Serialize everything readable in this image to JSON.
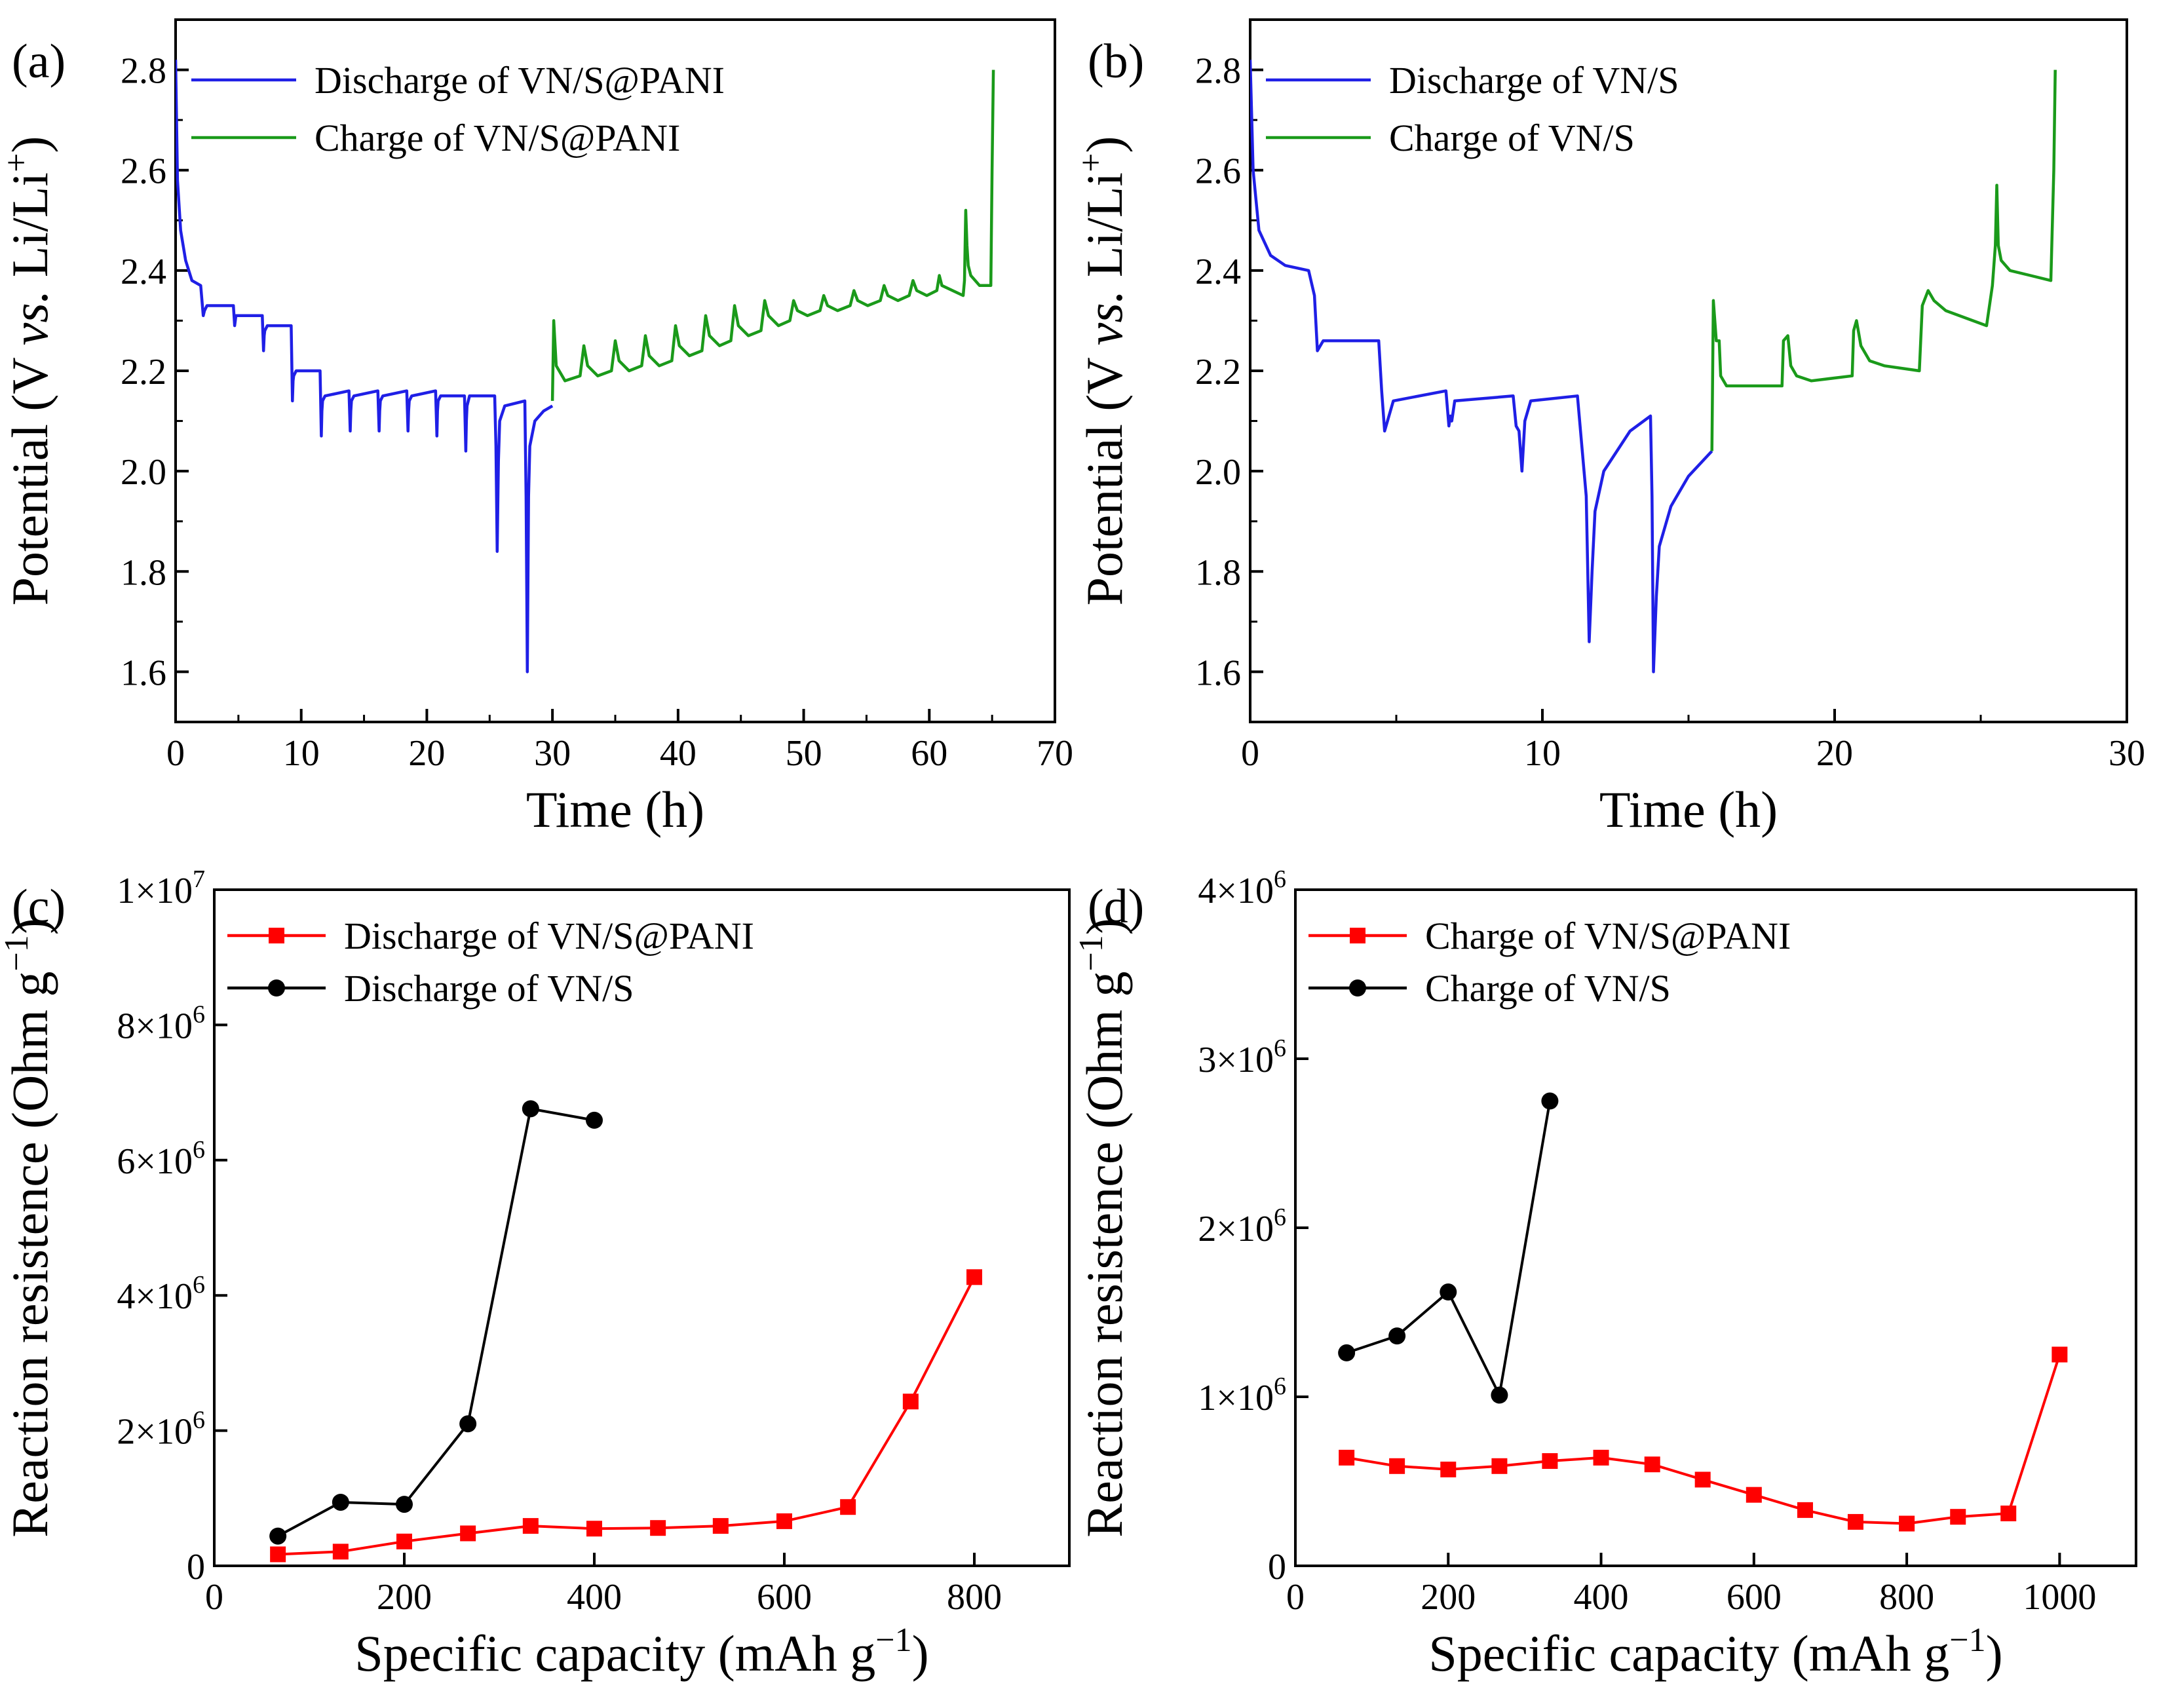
{
  "chart_data": [
    {
      "panel": "a",
      "panel_label": "(a)",
      "type": "line",
      "xlabel": "Time (h)",
      "ylabel": "Potential (V vs. Li/Li+)",
      "ylabel_parts": {
        "pre": "Potential (V ",
        "italic": "vs.",
        "post": " Li/Li",
        "sup": "+",
        "end": ")"
      },
      "xlim": [
        0,
        70
      ],
      "ylim": [
        1.5,
        2.9
      ],
      "x_ticks": [
        0,
        10,
        20,
        30,
        40,
        50,
        60,
        70
      ],
      "x_tick_labels": [
        "0",
        "10",
        "20",
        "30",
        "40",
        "50",
        "60",
        "70"
      ],
      "y_ticks": [
        1.6,
        1.8,
        2.0,
        2.2,
        2.4,
        2.6,
        2.8
      ],
      "y_tick_labels": [
        "1.6",
        "1.8",
        "2.0",
        "2.2",
        "2.4",
        "2.6",
        "2.8"
      ],
      "legend_position": "top-left",
      "series": [
        {
          "name": "Discharge of VN/S@PANI",
          "color": "#1f1fe6",
          "x": [
            0,
            0.15,
            0.4,
            0.8,
            1.3,
            2.0,
            2.2,
            2.3,
            2.5,
            4.6,
            4.7,
            4.75,
            4.8,
            5.0,
            6.9,
            7.0,
            7.05,
            7.1,
            7.3,
            9.2,
            9.3,
            9.35,
            9.4,
            9.6,
            11.5,
            11.6,
            11.65,
            11.7,
            11.9,
            13.8,
            13.9,
            13.95,
            14.0,
            14.2,
            16.1,
            16.2,
            16.25,
            16.3,
            16.5,
            18.4,
            18.5,
            18.55,
            18.6,
            18.8,
            20.7,
            20.8,
            20.85,
            20.9,
            21.1,
            23.0,
            23.1,
            23.15,
            23.2,
            23.4,
            25.4,
            25.5,
            25.6,
            25.7,
            25.8,
            26.2,
            27.8,
            27.9,
            28.0,
            28.1,
            28.2,
            28.6,
            29.3,
            30.0
          ],
          "y": [
            2.82,
            2.58,
            2.48,
            2.42,
            2.38,
            2.37,
            2.31,
            2.32,
            2.33,
            2.33,
            2.29,
            2.3,
            2.31,
            2.31,
            2.31,
            2.24,
            2.27,
            2.28,
            2.29,
            2.29,
            2.14,
            2.18,
            2.19,
            2.2,
            2.2,
            2.07,
            2.12,
            2.14,
            2.15,
            2.16,
            2.08,
            2.12,
            2.14,
            2.15,
            2.16,
            2.08,
            2.12,
            2.14,
            2.15,
            2.16,
            2.08,
            2.12,
            2.14,
            2.15,
            2.16,
            2.07,
            2.12,
            2.14,
            2.15,
            2.15,
            2.04,
            2.1,
            2.13,
            2.15,
            2.15,
            2.05,
            1.84,
            2.02,
            2.1,
            2.13,
            2.14,
            1.95,
            1.6,
            1.95,
            2.05,
            2.1,
            2.12,
            2.13
          ]
        },
        {
          "name": "Charge of VN/S@PANI",
          "color": "#1a9a1a",
          "x": [
            30.0,
            30.1,
            30.3,
            31.0,
            32.2,
            32.5,
            32.8,
            33.6,
            34.7,
            35.0,
            35.3,
            36.1,
            37.1,
            37.4,
            37.7,
            38.5,
            39.5,
            39.8,
            40.1,
            40.9,
            41.9,
            42.2,
            42.5,
            43.3,
            44.2,
            44.5,
            44.8,
            45.6,
            46.6,
            46.9,
            47.2,
            48.0,
            48.9,
            49.2,
            49.5,
            50.3,
            51.3,
            51.6,
            51.9,
            52.7,
            53.7,
            54.0,
            54.3,
            55.1,
            56.1,
            56.4,
            56.7,
            57.5,
            58.4,
            58.7,
            59.0,
            59.8,
            60.6,
            60.8,
            61.0,
            62.7,
            62.8,
            62.9,
            63.0,
            63.1,
            63.3,
            64.0,
            64.9,
            65.0,
            65.1
          ],
          "y": [
            2.14,
            2.3,
            2.21,
            2.18,
            2.19,
            2.25,
            2.21,
            2.19,
            2.2,
            2.26,
            2.22,
            2.2,
            2.21,
            2.27,
            2.23,
            2.21,
            2.22,
            2.29,
            2.25,
            2.23,
            2.24,
            2.31,
            2.27,
            2.25,
            2.26,
            2.33,
            2.29,
            2.27,
            2.28,
            2.34,
            2.31,
            2.29,
            2.3,
            2.34,
            2.32,
            2.31,
            2.32,
            2.35,
            2.33,
            2.32,
            2.33,
            2.36,
            2.34,
            2.33,
            2.34,
            2.37,
            2.35,
            2.34,
            2.35,
            2.38,
            2.36,
            2.35,
            2.36,
            2.39,
            2.37,
            2.35,
            2.38,
            2.52,
            2.45,
            2.41,
            2.39,
            2.37,
            2.37,
            2.6,
            2.8
          ]
        }
      ]
    },
    {
      "panel": "b",
      "panel_label": "(b)",
      "type": "line",
      "xlabel": "Time (h)",
      "ylabel": "Potential (V vs. Li/Li+)",
      "ylabel_parts": {
        "pre": "Potential (V ",
        "italic": "vs.",
        "post": " Li/Li",
        "sup": "+",
        "end": ")"
      },
      "xlim": [
        0,
        30
      ],
      "ylim": [
        1.5,
        2.9
      ],
      "x_ticks": [
        0,
        10,
        20,
        30
      ],
      "x_tick_labels": [
        "0",
        "10",
        "20",
        "30"
      ],
      "y_ticks": [
        1.6,
        1.8,
        2.0,
        2.2,
        2.4,
        2.6,
        2.8
      ],
      "y_tick_labels": [
        "1.6",
        "1.8",
        "2.0",
        "2.2",
        "2.4",
        "2.6",
        "2.8"
      ],
      "legend_position": "top-left",
      "series": [
        {
          "name": "Discharge of VN/S",
          "color": "#1f1fe6",
          "x": [
            0,
            0.1,
            0.3,
            0.7,
            1.2,
            2.0,
            2.2,
            2.3,
            2.4,
            2.5,
            4.4,
            4.5,
            4.6,
            4.7,
            4.9,
            6.7,
            6.8,
            6.85,
            6.9,
            7.0,
            9.0,
            9.1,
            9.2,
            9.25,
            9.3,
            9.4,
            9.6,
            11.2,
            11.5,
            11.6,
            11.7,
            11.8,
            12.1,
            13.0,
            13.7,
            13.75,
            13.8,
            13.9,
            14.0,
            14.4,
            15.0,
            15.8
          ],
          "y": [
            2.82,
            2.6,
            2.48,
            2.43,
            2.41,
            2.4,
            2.35,
            2.24,
            2.25,
            2.26,
            2.26,
            2.16,
            2.08,
            2.1,
            2.14,
            2.16,
            2.09,
            2.11,
            2.1,
            2.14,
            2.15,
            2.09,
            2.08,
            2.04,
            2.0,
            2.1,
            2.14,
            2.15,
            1.95,
            1.66,
            1.8,
            1.92,
            2.0,
            2.08,
            2.11,
            1.95,
            1.6,
            1.75,
            1.85,
            1.93,
            1.99,
            2.04
          ]
        },
        {
          "name": "Charge of VN/S",
          "color": "#1a9a1a",
          "x": [
            15.8,
            15.85,
            15.95,
            16.05,
            16.1,
            16.3,
            16.6,
            18.2,
            18.25,
            18.4,
            18.5,
            18.7,
            19.2,
            20.6,
            20.65,
            20.75,
            20.9,
            21.2,
            21.7,
            22.9,
            23.0,
            23.2,
            23.4,
            23.8,
            25.2,
            25.4,
            25.5,
            25.55,
            25.6,
            25.7,
            26.0,
            26.7,
            27.4,
            27.5,
            27.55
          ],
          "y": [
            2.04,
            2.34,
            2.26,
            2.26,
            2.19,
            2.17,
            2.17,
            2.17,
            2.26,
            2.27,
            2.21,
            2.19,
            2.18,
            2.19,
            2.28,
            2.3,
            2.25,
            2.22,
            2.21,
            2.2,
            2.33,
            2.36,
            2.34,
            2.32,
            2.29,
            2.37,
            2.45,
            2.57,
            2.45,
            2.42,
            2.4,
            2.39,
            2.38,
            2.6,
            2.8
          ]
        }
      ]
    },
    {
      "panel": "c",
      "panel_label": "(c)",
      "type": "line",
      "markers": true,
      "xlabel": "Specific capacity (mAh g−1)",
      "xlabel_parts": {
        "pre": "Specific capacity (mAh g",
        "sup": "−1",
        "end": ")"
      },
      "ylabel": "Reaction resistence (Ohm g−1)",
      "ylabel_parts": {
        "pre": "Reaction resistence (Ohm g",
        "sup": "−1",
        "end": ")"
      },
      "xlim": [
        0,
        900
      ],
      "ylim": [
        0,
        10000000
      ],
      "x_ticks": [
        0,
        200,
        400,
        600,
        800
      ],
      "x_tick_labels": [
        "0",
        "200",
        "400",
        "600",
        "800"
      ],
      "y_ticks": [
        0,
        2000000,
        4000000,
        6000000,
        8000000,
        10000000
      ],
      "y_tick_labels": [
        {
          "base": "0",
          "exp": ""
        },
        {
          "base": "2×10",
          "exp": "6"
        },
        {
          "base": "4×10",
          "exp": "6"
        },
        {
          "base": "6×10",
          "exp": "6"
        },
        {
          "base": "8×10",
          "exp": "6"
        },
        {
          "base": "1×10",
          "exp": "7"
        }
      ],
      "legend_position": "top-left",
      "series": [
        {
          "name": "Discharge of VN/S@PANI",
          "color": "#ff0000",
          "marker": "square",
          "x": [
            67,
            133,
            200,
            267,
            333,
            400,
            467,
            533,
            600,
            667,
            733,
            800
          ],
          "y": [
            170000,
            210000,
            360000,
            480000,
            590000,
            550000,
            560000,
            590000,
            660000,
            870000,
            2430000,
            4270000
          ]
        },
        {
          "name": "Discharge of VN/S",
          "color": "#000000",
          "marker": "circle",
          "x": [
            67,
            133,
            200,
            267,
            333,
            400
          ],
          "y": [
            440000,
            940000,
            910000,
            2100000,
            6760000,
            6590000
          ]
        }
      ]
    },
    {
      "panel": "d",
      "panel_label": "(d)",
      "type": "line",
      "markers": true,
      "xlabel": "Specific capacity (mAh g−1)",
      "xlabel_parts": {
        "pre": "Specific capacity (mAh g",
        "sup": "−1",
        "end": ")"
      },
      "ylabel": "Reaction resistence (Ohm g−1)",
      "ylabel_parts": {
        "pre": "Reaction resistence (Ohm g",
        "sup": "−1",
        "end": ")"
      },
      "xlim": [
        0,
        1100
      ],
      "ylim": [
        0,
        4000000
      ],
      "x_ticks": [
        0,
        200,
        400,
        600,
        800,
        1000
      ],
      "x_tick_labels": [
        "0",
        "200",
        "400",
        "600",
        "800",
        "1000"
      ],
      "y_ticks": [
        0,
        1000000,
        2000000,
        3000000,
        4000000
      ],
      "y_tick_labels": [
        {
          "base": "0",
          "exp": ""
        },
        {
          "base": "1×10",
          "exp": "6"
        },
        {
          "base": "2×10",
          "exp": "6"
        },
        {
          "base": "3×10",
          "exp": "6"
        },
        {
          "base": "4×10",
          "exp": "6"
        }
      ],
      "legend_position": "top-left",
      "series": [
        {
          "name": "Charge of VN/S@PANI",
          "color": "#ff0000",
          "marker": "square",
          "x": [
            67,
            133,
            200,
            267,
            333,
            400,
            467,
            533,
            600,
            667,
            733,
            800,
            867,
            933,
            1000
          ],
          "y": [
            640000,
            590000,
            570000,
            590000,
            620000,
            640000,
            600000,
            510000,
            420000,
            330000,
            260000,
            250000,
            290000,
            310000,
            1250000
          ]
        },
        {
          "name": "Charge of VN/S",
          "color": "#000000",
          "marker": "circle",
          "x": [
            67,
            133,
            200,
            267,
            333
          ],
          "y": [
            1260000,
            1360000,
            1620000,
            1010000,
            2750000
          ]
        }
      ]
    }
  ]
}
